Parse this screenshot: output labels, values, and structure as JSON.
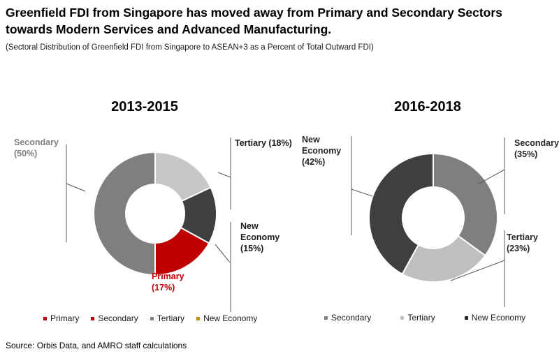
{
  "header": {
    "title": "Greenfield FDI from Singapore has moved away from Primary and Secondary Sectors towards Modern Services and Advanced Manufacturing.",
    "subtitle": "(Sectoral Distribution of Greenfield FDI from Singapore to ASEAN+3 as a Percent of Total Outward FDI)"
  },
  "source": "Source: Orbis Data, and AMRO staff calculations",
  "chart_data": [
    {
      "type": "pie",
      "subtype": "donut",
      "title": "2013-2015",
      "start_angle_deg": 0,
      "direction": "clockwise",
      "legend_position": "bottom",
      "slices": [
        {
          "label": "Tertiary",
          "value_pct": 18,
          "color": "#c7c7c7",
          "callout": "Tertiary (18%)",
          "callout_color": "#1a1a1a"
        },
        {
          "label": "New Economy",
          "value_pct": 15,
          "color": "#3f3f3f",
          "callout": "New\nEconomy\n(15%)",
          "callout_color": "#1a1a1a"
        },
        {
          "label": "Primary",
          "value_pct": 17,
          "color": "#c00000",
          "callout": "Primary\n(17%)",
          "callout_color": "#c00000"
        },
        {
          "label": "Secondary",
          "value_pct": 50,
          "color": "#7f7f7f",
          "callout": "Secondary\n(50%)",
          "callout_color": "#808080"
        }
      ],
      "legend": [
        {
          "label": "Primary",
          "color": "#c00000"
        },
        {
          "label": "Secondary",
          "color": "#c00000"
        },
        {
          "label": "Tertiary",
          "color": "#7f7f7f"
        },
        {
          "label": "New Economy",
          "color": "#bf8f00"
        }
      ]
    },
    {
      "type": "pie",
      "subtype": "donut",
      "title": "2016-2018",
      "start_angle_deg": 0,
      "direction": "clockwise",
      "legend_position": "bottom",
      "slices": [
        {
          "label": "Secondary",
          "value_pct": 35,
          "color": "#7f7f7f",
          "callout": "Secondary\n(35%)",
          "callout_color": "#262626"
        },
        {
          "label": "Tertiary",
          "value_pct": 23,
          "color": "#bfbfbf",
          "callout": "Tertiary\n(23%)",
          "callout_color": "#262626"
        },
        {
          "label": "New Economy",
          "value_pct": 42,
          "color": "#3f3f3f",
          "callout": "New\nEconomy\n(42%)",
          "callout_color": "#262626"
        }
      ],
      "legend": [
        {
          "label": "Secondary",
          "color": "#7f7f7f"
        },
        {
          "label": "Tertiary",
          "color": "#bfbfbf"
        },
        {
          "label": "New Economy",
          "color": "#262626"
        }
      ]
    }
  ]
}
